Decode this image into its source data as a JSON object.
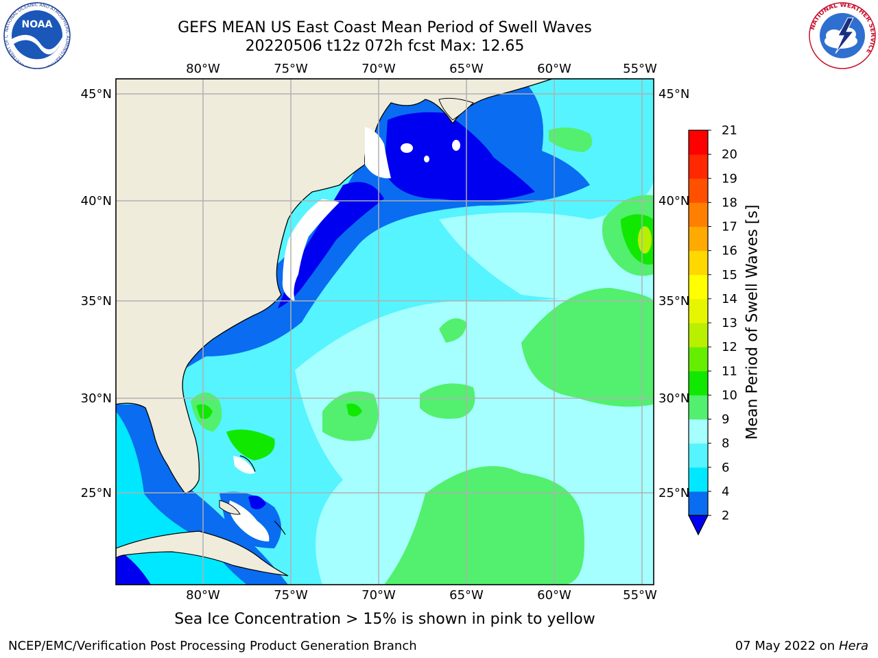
{
  "header": {
    "title_line1": "GEFS MEAN US East Coast Mean Period of Swell Waves",
    "title_line2": "20220506 t12z 072h fcst   Max: 12.65"
  },
  "logos": {
    "left": {
      "icon": "noaa-logo-icon",
      "text": "NOAA",
      "ring_text": "NATIONAL OCEANIC AND ATMOSPHERIC ADMINISTRATION · U.S. DEPARTMENT OF COMMERCE"
    },
    "right": {
      "icon": "nws-logo-icon",
      "ring_text": "NATIONAL WEATHER SERVICE"
    }
  },
  "map": {
    "lon_labels_top": [
      "80°W",
      "75°W",
      "70°W",
      "65°W",
      "60°W",
      "55°W"
    ],
    "lon_labels_bottom": [
      "80°W",
      "75°W",
      "70°W",
      "65°W",
      "60°W",
      "55°W"
    ],
    "lat_labels_left": [
      "45°N",
      "40°N",
      "35°N",
      "30°N",
      "25°N"
    ],
    "lat_labels_right": [
      "45°N",
      "40°N",
      "35°N",
      "30°N",
      "25°N"
    ],
    "colors": {
      "land": "#efecdc",
      "grid": "#b0b0b0"
    }
  },
  "colorbar": {
    "label": "Mean Period of Swell Waves [s]",
    "ticks": [
      "2",
      "4",
      "6",
      "8",
      "9",
      "10",
      "11",
      "12",
      "13",
      "14",
      "15",
      "16",
      "17",
      "18",
      "19",
      "20",
      "21"
    ],
    "colors": [
      "#0000f0",
      "#0a6cf0",
      "#00e8ff",
      "#55f4ff",
      "#a6ffff",
      "#52f06e",
      "#10e800",
      "#66ee00",
      "#b8f000",
      "#e6f500",
      "#ffff00",
      "#ffd800",
      "#ffaa00",
      "#ff8000",
      "#ff5000",
      "#ff2800",
      "#ff0000"
    ]
  },
  "footer": {
    "footnote": "Sea Ice Concentration > 15% is shown in pink to yellow",
    "credit": "NCEP/EMC/Verification Post Processing Product Generation Branch",
    "date": "07 May 2022 on",
    "machine": "Hera"
  }
}
